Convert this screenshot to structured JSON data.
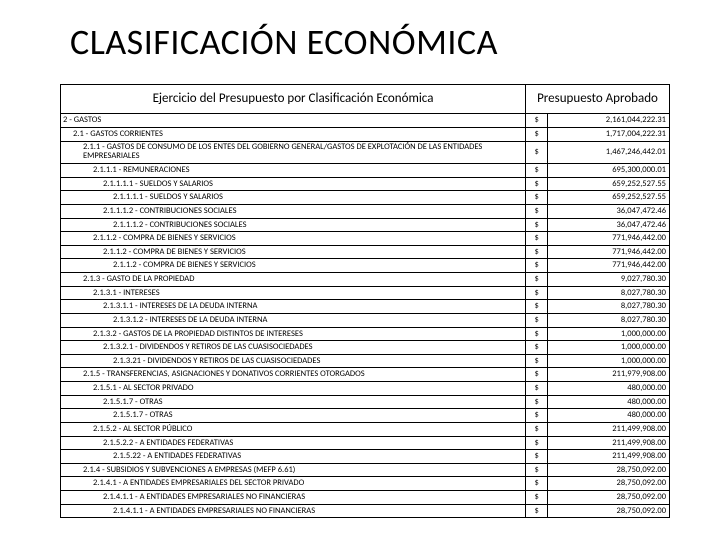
{
  "title": "CLASIFICACIÓN ECONÓMICA",
  "table": {
    "header_desc": "Ejercicio del Presupuesto por Clasificación Económica",
    "header_amount": "Presupuesto Aprobado",
    "currency": "$",
    "rows": [
      {
        "indent": 0,
        "label": "2 - GASTOS",
        "value": "2,161,044,222.31"
      },
      {
        "indent": 1,
        "label": "2.1 - GASTOS CORRIENTES",
        "value": "1,717,004,222.31"
      },
      {
        "indent": 2,
        "label": "2.1.1 - GASTOS DE CONSUMO DE LOS ENTES DEL GOBIERNO GENERAL/GASTOS DE EXPLOTACIÓN DE LAS ENTIDADES EMPRESARIALES",
        "value": "1,467,246,442.01",
        "wrap": true
      },
      {
        "indent": 3,
        "label": "2.1.1.1 - REMUNERACIONES",
        "value": "695,300,000.01"
      },
      {
        "indent": 4,
        "label": "2.1.1.1.1 - SUELDOS Y SALARIOS",
        "value": "659,252,527.55"
      },
      {
        "indent": 5,
        "label": "2.1.1.1.1 - SUELDOS Y SALARIOS",
        "value": "659,252,527.55"
      },
      {
        "indent": 4,
        "label": "2.1.1.1.2 - CONTRIBUCIONES SOCIALES",
        "value": "36,047,472.46"
      },
      {
        "indent": 5,
        "label": "2.1.1.1.2 - CONTRIBUCIONES SOCIALES",
        "value": "36,047,472.46"
      },
      {
        "indent": 3,
        "label": "2.1.1.2 - COMPRA DE BIENES Y SERVICIOS",
        "value": "771,946,442.00"
      },
      {
        "indent": 4,
        "label": "2.1.1.2 - COMPRA DE BIENES Y SERVICIOS",
        "value": "771,946,442.00"
      },
      {
        "indent": 5,
        "label": "2.1.1.2 - COMPRA DE BIENES Y SERVICIOS",
        "value": "771,946,442.00"
      },
      {
        "indent": 2,
        "label": "2.1.3 - GASTO DE LA PROPIEDAD",
        "value": "9,027,780.30"
      },
      {
        "indent": 3,
        "label": "2.1.3.1 - INTERESES",
        "value": "8,027,780.30"
      },
      {
        "indent": 4,
        "label": "2.1.3.1.1 - INTERESES DE LA DEUDA INTERNA",
        "value": "8,027,780.30"
      },
      {
        "indent": 5,
        "label": "2.1.3.1.2 - INTERESES DE LA DEUDA INTERNA",
        "value": "8,027,780.30"
      },
      {
        "indent": 3,
        "label": "2.1.3.2 - GASTOS DE LA PROPIEDAD DISTINTOS DE INTERESES",
        "value": "1,000,000.00"
      },
      {
        "indent": 4,
        "label": "2.1.3.2.1 - DIVIDENDOS Y RETIROS DE LAS CUASISOCIEDADES",
        "value": "1,000,000.00"
      },
      {
        "indent": 5,
        "label": "2.1.3.21 - DIVIDENDOS Y RETIROS DE LAS CUASISOCIEDADES",
        "value": "1,000,000.00"
      },
      {
        "indent": 2,
        "label": "2.1.5 - TRANSFERENCIAS, ASIGNACIONES Y DONATIVOS CORRIENTES OTORGADOS",
        "value": "211,979,908.00"
      },
      {
        "indent": 3,
        "label": "2.1.5.1 - AL SECTOR PRIVADO",
        "value": "480,000.00"
      },
      {
        "indent": 4,
        "label": "2.1.5.1.7 - OTRAS",
        "value": "480,000.00"
      },
      {
        "indent": 5,
        "label": "2.1.5.1.7 - OTRAS",
        "value": "480,000.00"
      },
      {
        "indent": 3,
        "label": "2.1.5.2 - AL SECTOR PÚBLICO",
        "value": "211,499,908.00"
      },
      {
        "indent": 4,
        "label": "2.1.5.2.2 - A ENTIDADES FEDERATIVAS",
        "value": "211,499,908.00"
      },
      {
        "indent": 5,
        "label": "2.1.5.22 - A ENTIDADES FEDERATIVAS",
        "value": "211,499,908.00"
      },
      {
        "indent": 2,
        "label": "2.1.4 - SUBSIDIOS Y SUBVENCIONES A EMPRESAS (MEFP 6.61)",
        "value": "28,750,092.00"
      },
      {
        "indent": 3,
        "label": "2.1.4.1 - A ENTIDADES EMPRESARIALES DEL SECTOR PRIVADO",
        "value": "28,750,092.00"
      },
      {
        "indent": 4,
        "label": "2.1.4.1.1 - A ENTIDADES EMPRESARIALES NO FINANCIERAS",
        "value": "28,750,092.00"
      },
      {
        "indent": 5,
        "label": "2.1.4.1.1 - A ENTIDADES EMPRESARIALES NO FINANCIERAS",
        "value": "28,750,092.00"
      }
    ]
  }
}
